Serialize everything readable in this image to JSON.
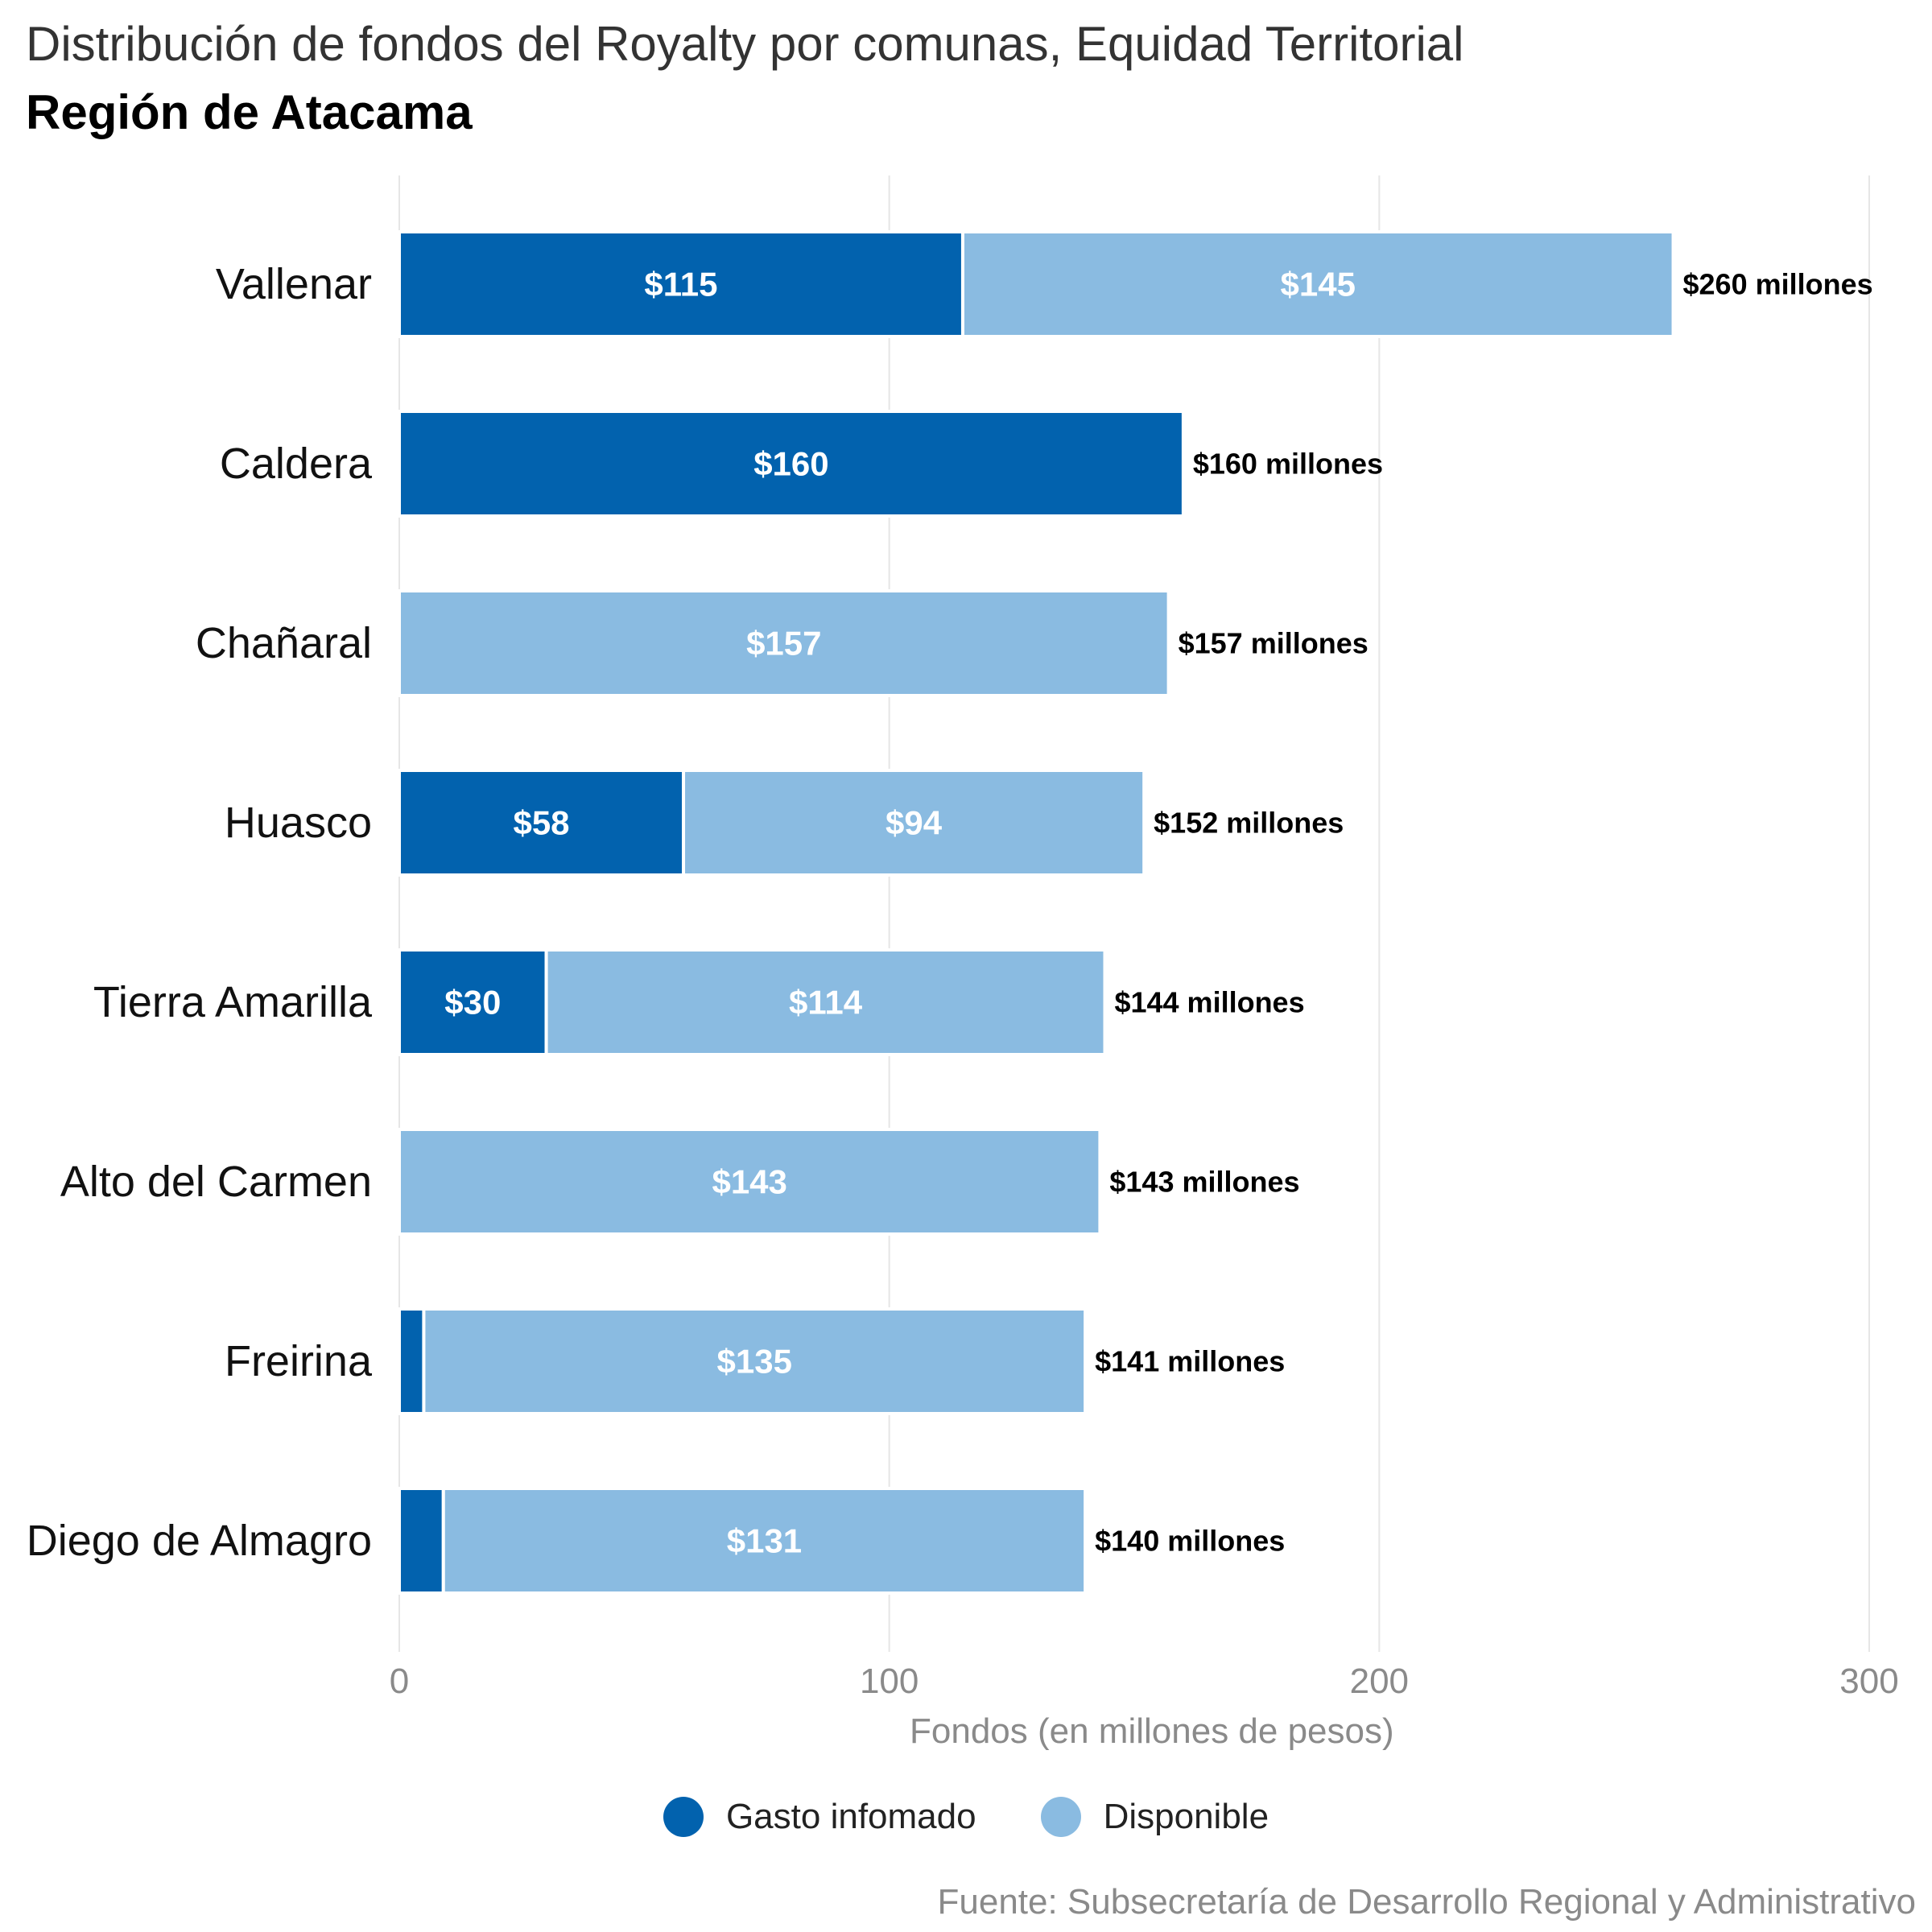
{
  "title": "Distribución de fondos del Royalty por comunas, Equidad Territorial",
  "subtitle": "Región de Atacama",
  "source": "Fuente: Subsecretaría de Desarrollo Regional y Administrativo",
  "colors": {
    "gasto": "#0262ae",
    "disponible": "#8abbe1",
    "grid": "#e6e6e6"
  },
  "legend": {
    "gasto_label": "Gasto infomado",
    "disponible_label": "Disponible"
  },
  "chart_data": {
    "type": "bar",
    "orientation": "horizontal",
    "stacked": true,
    "categories": [
      "Vallenar",
      "Caldera",
      "Chañaral",
      "Huasco",
      "Tierra Amarilla",
      "Alto del Carmen",
      "Freirina",
      "Diego de Almagro"
    ],
    "series": [
      {
        "name": "Gasto infomado",
        "values": [
          115,
          160,
          0,
          58,
          30,
          0,
          5,
          9
        ],
        "labels": [
          "$115",
          "$160",
          "",
          "$58",
          "$30",
          "",
          "",
          ""
        ]
      },
      {
        "name": "Disponible",
        "values": [
          145,
          0,
          157,
          94,
          114,
          143,
          135,
          131
        ],
        "labels": [
          "$145",
          "",
          "$157",
          "$94",
          "$114",
          "$143",
          "$135",
          "$131"
        ]
      }
    ],
    "totals": [
      "$260 millones",
      "$160 millones",
      "$157 millones",
      "$152 millones",
      "$144 millones",
      "$143 millones",
      "$141 millones",
      "$140 millones"
    ],
    "xlabel": "Fondos (en millones de pesos)",
    "xlim": [
      0,
      300
    ],
    "xticks": [
      0,
      100,
      200,
      300
    ],
    "grid": true,
    "legend_position": "bottom"
  }
}
